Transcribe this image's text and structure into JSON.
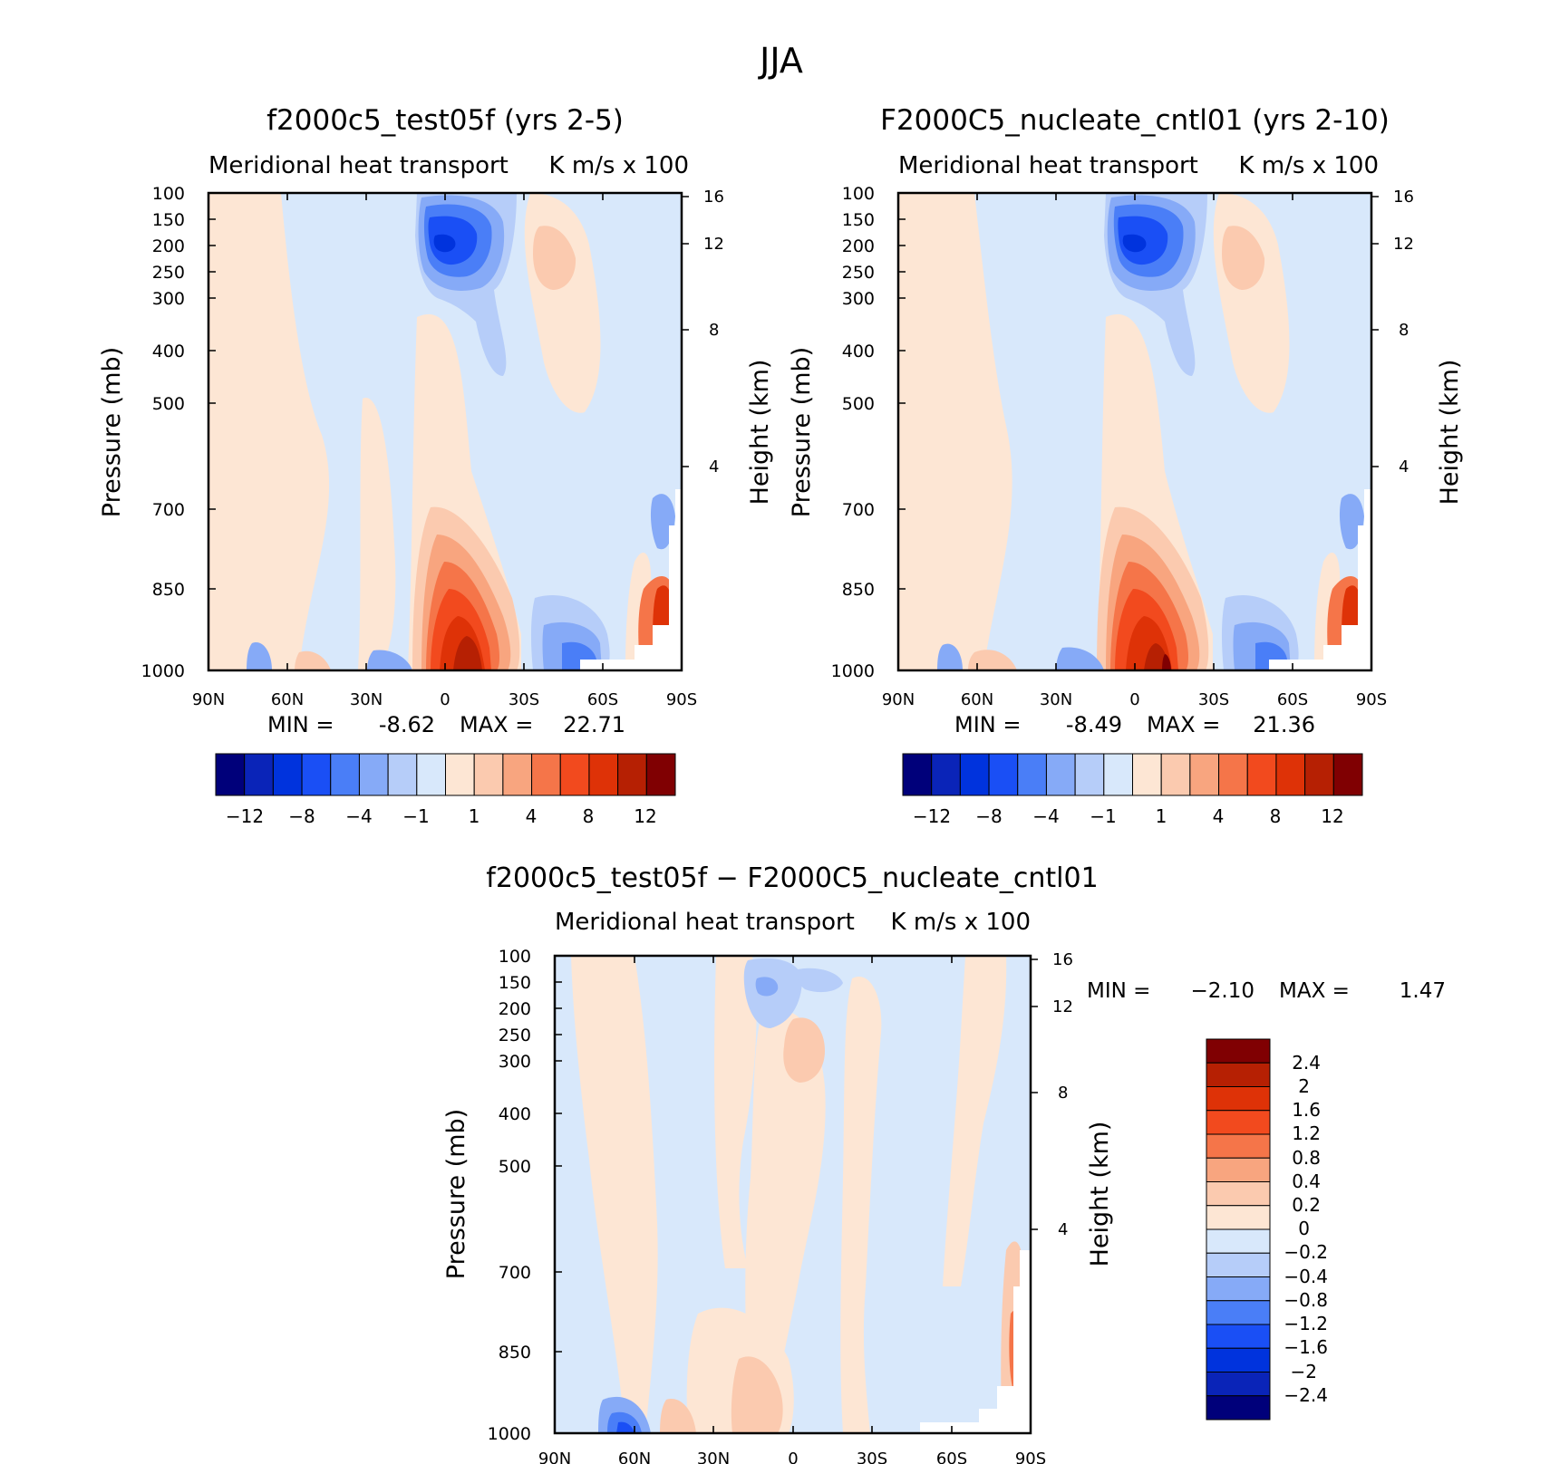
{
  "figure": {
    "title": "JJA"
  },
  "chart_data": [
    {
      "type": "heatmap",
      "panel": "test",
      "title": "f2000c5_test05f (yrs 2-5)",
      "subtitle_left": "Meridional heat transport",
      "subtitle_right": "K m/s x 100",
      "ylabel": "Pressure (mb)",
      "y2label": "Height (km)",
      "xticks": [
        "90N",
        "60N",
        "30N",
        "0",
        "30S",
        "60S",
        "90S"
      ],
      "yticks": [
        "100",
        "150",
        "200",
        "250",
        "300",
        "400",
        "500",
        "700",
        "850",
        "1000"
      ],
      "y2ticks": [
        "16",
        "12",
        "8",
        "4"
      ],
      "y_scale": "log pressure",
      "ylim": [
        1000,
        100
      ],
      "xlim": [
        90,
        -90
      ],
      "stats": {
        "min_label": "MIN =",
        "min": "-8.62",
        "max_label": "MAX =",
        "max": "22.71"
      },
      "colorbar": {
        "orientation": "horizontal",
        "levels": [
          -12,
          -10,
          -8,
          -6,
          -4,
          -2,
          -1,
          0,
          1,
          2,
          4,
          6,
          8,
          10,
          12
        ],
        "tick_labels": [
          "−12",
          "−8",
          "−4",
          "−1",
          "1",
          "4",
          "8",
          "12"
        ]
      }
    },
    {
      "type": "heatmap",
      "panel": "control",
      "title": "F2000C5_nucleate_cntl01 (yrs 2-10)",
      "subtitle_left": "Meridional heat transport",
      "subtitle_right": "K m/s x 100",
      "ylabel": "Pressure (mb)",
      "y2label": "Height (km)",
      "xticks": [
        "90N",
        "60N",
        "30N",
        "0",
        "30S",
        "60S",
        "90S"
      ],
      "yticks": [
        "100",
        "150",
        "200",
        "250",
        "300",
        "400",
        "500",
        "700",
        "850",
        "1000"
      ],
      "y2ticks": [
        "16",
        "12",
        "8",
        "4"
      ],
      "y_scale": "log pressure",
      "ylim": [
        1000,
        100
      ],
      "xlim": [
        90,
        -90
      ],
      "stats": {
        "min_label": "MIN =",
        "min": "-8.49",
        "max_label": "MAX =",
        "max": "21.36"
      },
      "colorbar": {
        "orientation": "horizontal",
        "levels": [
          -12,
          -10,
          -8,
          -6,
          -4,
          -2,
          -1,
          0,
          1,
          2,
          4,
          6,
          8,
          10,
          12
        ],
        "tick_labels": [
          "−12",
          "−8",
          "−4",
          "−1",
          "1",
          "4",
          "8",
          "12"
        ]
      }
    },
    {
      "type": "heatmap",
      "panel": "difference",
      "title": "f2000c5_test05f − F2000C5_nucleate_cntl01",
      "subtitle_left": "Meridional heat transport",
      "subtitle_right": "K m/s x 100",
      "ylabel": "Pressure (mb)",
      "y2label": "Height (km)",
      "xticks": [
        "90N",
        "60N",
        "30N",
        "0",
        "30S",
        "60S",
        "90S"
      ],
      "yticks": [
        "100",
        "150",
        "200",
        "250",
        "300",
        "400",
        "500",
        "700",
        "850",
        "1000"
      ],
      "y2ticks": [
        "16",
        "12",
        "8",
        "4"
      ],
      "y_scale": "log pressure",
      "ylim": [
        1000,
        100
      ],
      "xlim": [
        90,
        -90
      ],
      "stats": {
        "min_label": "MIN =",
        "min": "−2.10",
        "max_label": "MAX =",
        "max": "1.47"
      },
      "colorbar": {
        "orientation": "vertical",
        "levels": [
          2.4,
          2,
          1.6,
          1.2,
          0.8,
          0.4,
          0.2,
          0,
          -0.2,
          -0.4,
          -0.8,
          -1.2,
          -1.6,
          -2,
          -2.4
        ],
        "tick_labels": [
          "2.4",
          "2",
          "1.6",
          "1.2",
          "0.8",
          "0.4",
          "0.2",
          "0",
          "−0.2",
          "−0.4",
          "−0.8",
          "−1.2",
          "−1.6",
          "−2",
          "−2.4"
        ]
      }
    }
  ],
  "colors": {
    "palette_blue_to_red": [
      "#00007a",
      "#0a24b8",
      "#0033dd",
      "#1a4ff5",
      "#4a7ef7",
      "#86aaf7",
      "#b6cdf9",
      "#d8e8fb",
      "#fde6d4",
      "#fbcaaf",
      "#f8a57f",
      "#f57549",
      "#f24a1e",
      "#de3207",
      "#b62003",
      "#800002"
    ],
    "no_data": "#ffffff"
  }
}
